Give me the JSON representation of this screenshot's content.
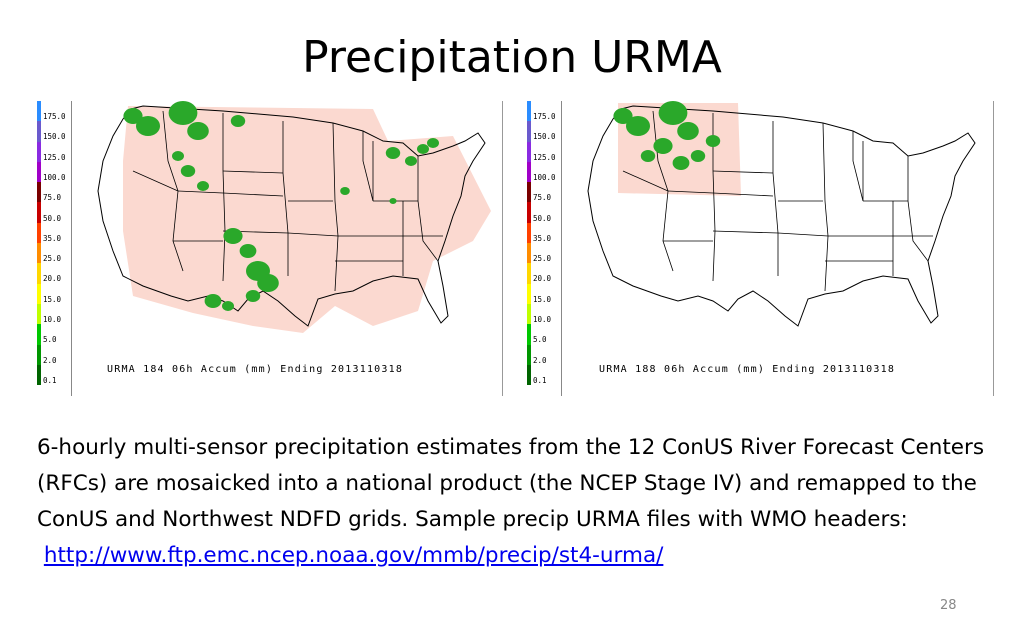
{
  "slide": {
    "title": "Precipitation URMA",
    "body_text": "6-hourly multi-sensor precipitation estimates from the 12 ConUS River Forecast Centers (RFCs) are mosaicked into a national product (the NCEP Stage IV) and remapped to the ConUS and Northwest NDFD grids.  Sample precip URMA files with WMO headers:",
    "link": "http://www.ftp.emc.ncep.noaa.gov/mmb/precip/st4-urma/",
    "page_number": "28"
  },
  "legend": {
    "labels": [
      "175.0",
      "150.0",
      "125.0",
      "100.0",
      "75.0",
      "50.0",
      "35.0",
      "25.0",
      "20.0",
      "15.0",
      "10.0",
      "5.0",
      "2.0",
      "0.1"
    ],
    "colors": [
      "#2a8cff",
      "#6a5acd",
      "#8a2be2",
      "#a000c8",
      "#7a0000",
      "#c80000",
      "#ff4000",
      "#ff8c00",
      "#ffd700",
      "#ffff00",
      "#bfff00",
      "#00c800",
      "#009600",
      "#006400"
    ]
  },
  "maps": {
    "left_caption": "URMA 184 06h Accum (mm) Ending 2013110318",
    "right_caption": "URMA 188 06h Accum (mm) Ending 2013110318",
    "domain_color": "#fbd9d0",
    "rain_color": "#2aa82a"
  }
}
